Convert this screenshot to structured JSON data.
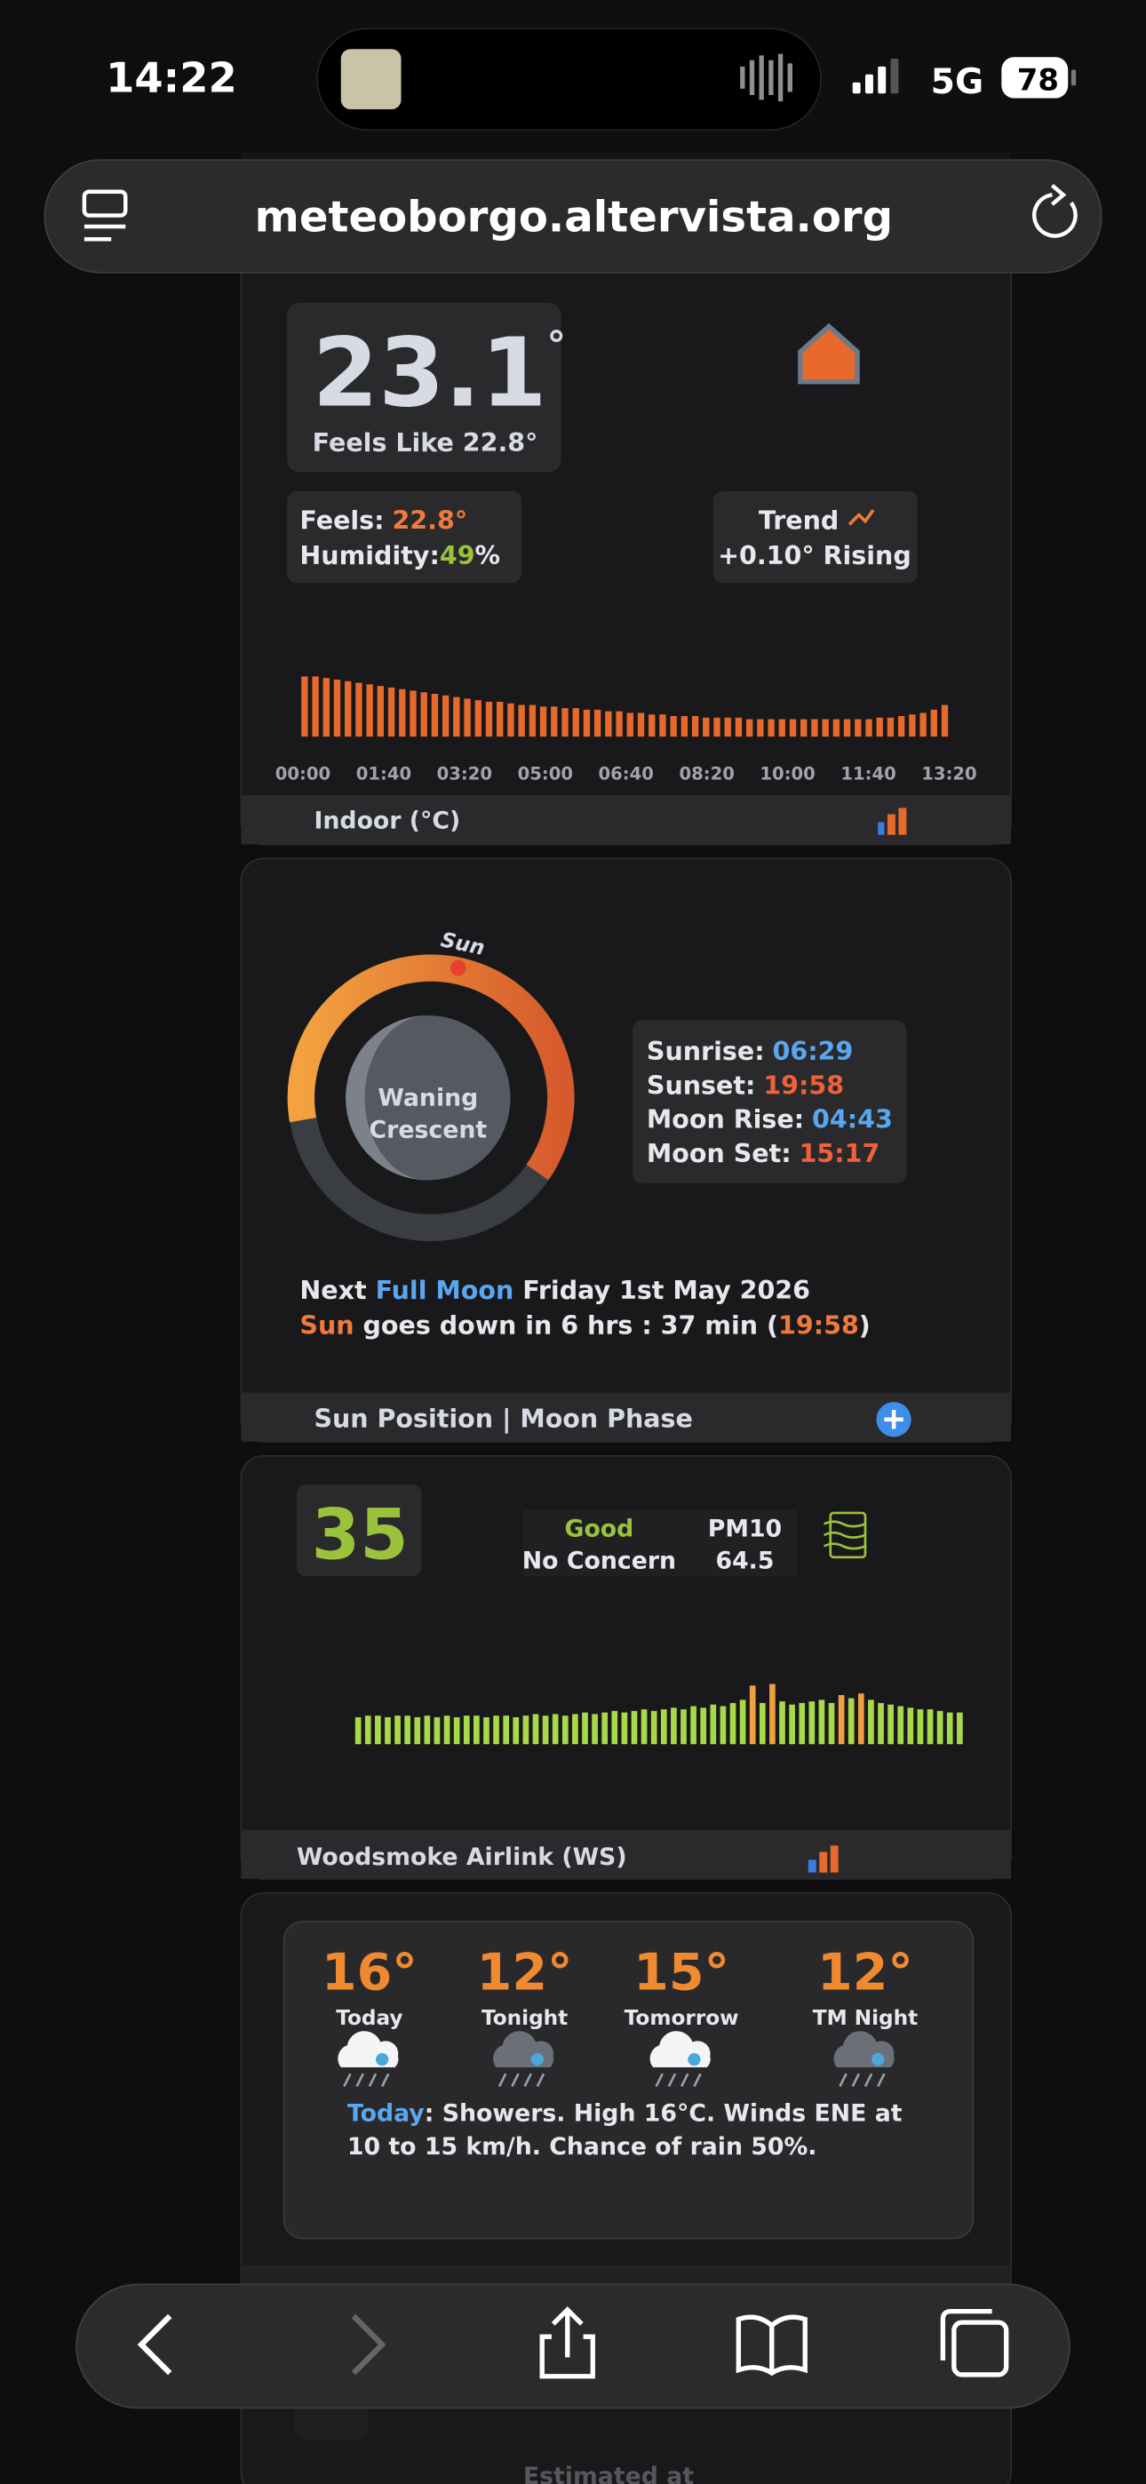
{
  "status": {
    "time": "14:22",
    "network": "5G",
    "battery": "78"
  },
  "address_bar": {
    "url": "meteoborgo.altervista.org"
  },
  "indoor": {
    "temperature": "23.1",
    "unit": "°",
    "feels_like": "Feels Like 22.8°",
    "feels_label": "Feels:",
    "feels_value": "22.8°",
    "humidity_label": "Humidity:",
    "humidity_value": "49",
    "humidity_unit": "%",
    "trend_label": "Trend",
    "trend_value": "+0.10° Rising",
    "times": [
      "00:00",
      "01:40",
      "03:20",
      "05:00",
      "06:40",
      "08:20",
      "10:00",
      "11:40",
      "13:20"
    ],
    "bars": [
      38,
      38,
      37,
      36,
      35,
      34,
      33,
      32,
      31,
      30,
      29,
      28,
      27,
      26,
      25,
      24,
      23,
      22,
      22,
      21,
      20,
      20,
      19,
      19,
      18,
      18,
      17,
      17,
      16,
      16,
      15,
      15,
      14,
      14,
      13,
      13,
      13,
      12,
      12,
      12,
      12,
      11,
      11,
      11,
      11,
      11,
      11,
      11,
      11,
      11,
      11,
      11,
      11,
      12,
      12,
      13,
      14,
      15,
      17,
      20
    ],
    "footer": "Indoor (°C)"
  },
  "sun_moon": {
    "sun_label": "Sun",
    "phase": [
      "Waning",
      "Crescent"
    ],
    "times": [
      {
        "label": "Sunrise:",
        "value": "06:29"
      },
      {
        "label": "Sunset:",
        "value": "19:58"
      },
      {
        "label": "Moon Rise:",
        "value": "04:43"
      },
      {
        "label": "Moon Set:",
        "value": "15:17"
      }
    ],
    "next": [
      "Next ",
      "Full Moon",
      " Friday 1st May 2026"
    ],
    "sundown": [
      "Sun",
      " goes down in 6 hrs : 37 min (",
      "19:58",
      ")"
    ],
    "footer": "Sun Position | Moon Phase"
  },
  "air_quality": {
    "index": "35",
    "level": "Good",
    "concern": "No Concern",
    "pm_label": "PM10",
    "pm_value": "64.5",
    "bars": [
      17,
      18,
      18,
      17,
      18,
      18,
      17,
      18,
      17,
      18,
      17,
      18,
      18,
      17,
      18,
      18,
      17,
      18,
      19,
      18,
      19,
      18,
      19,
      20,
      19,
      20,
      21,
      20,
      21,
      22,
      21,
      22,
      23,
      22,
      24,
      23,
      25,
      24,
      26,
      28,
      37,
      26,
      38,
      27,
      25,
      26,
      27,
      28,
      26,
      31,
      29,
      32,
      28,
      26,
      25,
      24,
      23,
      22,
      22,
      21,
      20,
      20
    ],
    "footer": "Woodsmoke Airlink (WS)"
  },
  "forecast": {
    "periods": [
      {
        "temp": "16°",
        "label": "Today"
      },
      {
        "temp": "12°",
        "label": "Tonight"
      },
      {
        "temp": "15°",
        "label": "Tomorrow"
      },
      {
        "temp": "12°",
        "label": "TM Night"
      }
    ],
    "summary": [
      "Today",
      ": Showers. High 16°C. Winds ENE at",
      "10 to 15 km/h. Chance of rain 50%."
    ]
  },
  "partial": {
    "estimated": "Estimated at"
  }
}
